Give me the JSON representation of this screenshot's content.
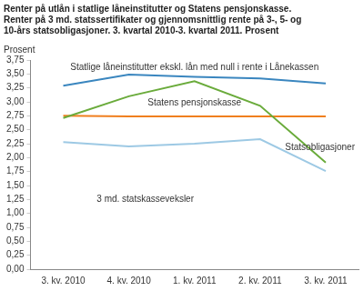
{
  "chart_data": {
    "type": "line",
    "title": [
      "Renter på utlån i statlige låneinstitutter og Statens pensjonskasse.",
      "Renter på 3 md. statssertifikater og gjennomsnittlig rente på 3-, 5- og",
      "10-års statsobligasjoner. 3. kvartal 2010-3. kvartal 2011. Prosent"
    ],
    "ylabel": "Prosent",
    "categories": [
      "3. kv. 2010",
      "4. kv. 2010",
      "1. kv. 2011",
      "2. kv. 2011",
      "3. kv. 2011"
    ],
    "series": [
      {
        "name": "Statlige låneinstitutter ekskl. lån med null i rente i Lånekassen",
        "color": "#3a86bf",
        "values": [
          3.29,
          3.49,
          3.45,
          3.42,
          3.33
        ]
      },
      {
        "name": "Statsobligasjoner",
        "color": "#6aab3b",
        "values": [
          2.71,
          3.1,
          3.37,
          2.93,
          1.91
        ]
      },
      {
        "name": "Statens pensjonskasse",
        "color": "#f07f1e",
        "values": [
          2.75,
          2.74,
          2.74,
          2.74,
          2.74
        ]
      },
      {
        "name": "3 md. statskasseveksler",
        "color": "#9dc9e4",
        "values": [
          2.28,
          2.2,
          2.25,
          2.33,
          1.76
        ]
      }
    ],
    "ylim": [
      0,
      3.75
    ],
    "yticks": [
      {
        "value": 0,
        "label": "0,00"
      },
      {
        "value": 0.25,
        "label": "0,25"
      },
      {
        "value": 0.5,
        "label": "0,50"
      },
      {
        "value": 0.75,
        "label": "0,75"
      },
      {
        "value": 1,
        "label": "1,00"
      },
      {
        "value": 1.25,
        "label": "1,25"
      },
      {
        "value": 1.5,
        "label": "1,50"
      },
      {
        "value": 1.75,
        "label": "1,75"
      },
      {
        "value": 2,
        "label": "2,00"
      },
      {
        "value": 2.25,
        "label": "2,25"
      },
      {
        "value": 2.5,
        "label": "2,50"
      },
      {
        "value": 2.75,
        "label": "2,75"
      },
      {
        "value": 3,
        "label": "3,00"
      },
      {
        "value": 3.25,
        "label": "3,25"
      },
      {
        "value": 3.5,
        "label": "3,50"
      },
      {
        "value": 3.75,
        "label": "3,75"
      }
    ],
    "grid": false,
    "marker": "none",
    "line_style": "solid"
  }
}
